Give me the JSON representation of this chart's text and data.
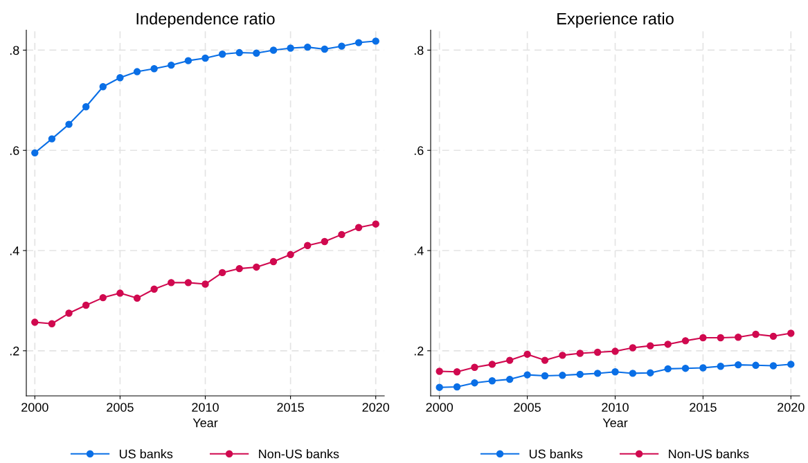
{
  "chart_data": [
    {
      "type": "line",
      "title": "Independence ratio",
      "xlabel": "Year",
      "x": [
        2000,
        2001,
        2002,
        2003,
        2004,
        2005,
        2006,
        2007,
        2008,
        2009,
        2010,
        2011,
        2012,
        2013,
        2014,
        2015,
        2016,
        2017,
        2018,
        2019,
        2020
      ],
      "series": [
        {
          "name": "US banks",
          "color": "#0a6fe6",
          "values": [
            0.595,
            0.623,
            0.652,
            0.687,
            0.727,
            0.745,
            0.757,
            0.763,
            0.77,
            0.779,
            0.784,
            0.792,
            0.795,
            0.794,
            0.8,
            0.804,
            0.806,
            0.802,
            0.808,
            0.815,
            0.818
          ]
        },
        {
          "name": "Non-US banks",
          "color": "#d0094f",
          "values": [
            0.257,
            0.254,
            0.275,
            0.291,
            0.306,
            0.315,
            0.305,
            0.323,
            0.336,
            0.336,
            0.333,
            0.356,
            0.364,
            0.367,
            0.378,
            0.392,
            0.41,
            0.418,
            0.432,
            0.446,
            0.453
          ]
        }
      ],
      "xlim": [
        1999.5,
        2020.5
      ],
      "xticks": [
        2000,
        2005,
        2010,
        2015,
        2020
      ],
      "ylim": [
        0.11,
        0.84
      ],
      "yticks": [
        {
          "value": 0.2,
          "label": ".2"
        },
        {
          "value": 0.4,
          "label": ".4"
        },
        {
          "value": 0.6,
          "label": ".6"
        },
        {
          "value": 0.8,
          "label": ".8"
        }
      ],
      "grid": true,
      "legend": "bottom",
      "marker": "circle",
      "line_style": "solid"
    },
    {
      "type": "line",
      "title": "Experience ratio",
      "xlabel": "Year",
      "x": [
        2000,
        2001,
        2002,
        2003,
        2004,
        2005,
        2006,
        2007,
        2008,
        2009,
        2010,
        2011,
        2012,
        2013,
        2014,
        2015,
        2016,
        2017,
        2018,
        2019,
        2020
      ],
      "series": [
        {
          "name": "US banks",
          "color": "#0a6fe6",
          "values": [
            0.127,
            0.128,
            0.136,
            0.14,
            0.143,
            0.152,
            0.15,
            0.151,
            0.153,
            0.155,
            0.158,
            0.155,
            0.156,
            0.164,
            0.165,
            0.166,
            0.169,
            0.172,
            0.171,
            0.17,
            0.173
          ]
        },
        {
          "name": "Non-US banks",
          "color": "#d0094f",
          "values": [
            0.159,
            0.158,
            0.167,
            0.173,
            0.181,
            0.193,
            0.181,
            0.191,
            0.195,
            0.197,
            0.199,
            0.206,
            0.21,
            0.213,
            0.22,
            0.226,
            0.226,
            0.227,
            0.233,
            0.229,
            0.235
          ]
        }
      ],
      "xlim": [
        1999.5,
        2020.5
      ],
      "xticks": [
        2000,
        2005,
        2010,
        2015,
        2020
      ],
      "ylim": [
        0.11,
        0.84
      ],
      "yticks": [
        {
          "value": 0.2,
          "label": ".2"
        },
        {
          "value": 0.4,
          "label": ".4"
        },
        {
          "value": 0.6,
          "label": ".6"
        },
        {
          "value": 0.8,
          "label": ".8"
        }
      ],
      "grid": true,
      "legend": "bottom",
      "marker": "circle",
      "line_style": "solid"
    }
  ]
}
